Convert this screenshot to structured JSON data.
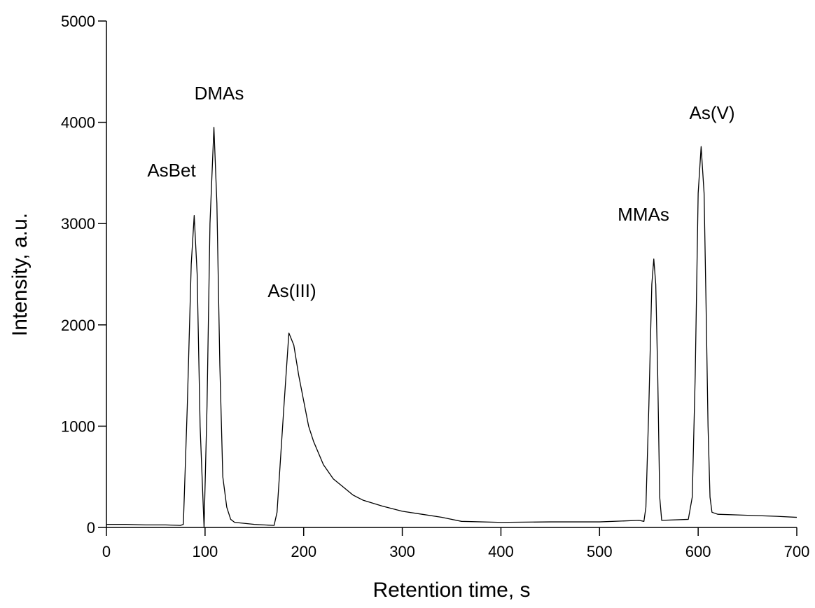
{
  "chart_data": {
    "type": "line",
    "xlabel": "Retention time, s",
    "ylabel": "Intensity, a.u.",
    "xlim": [
      0,
      700
    ],
    "xticks": [
      0,
      100,
      200,
      300,
      400,
      500,
      600,
      700
    ],
    "ylim": [
      0,
      5000
    ],
    "yticks": [
      0,
      1000,
      2000,
      3000,
      4000,
      5000
    ],
    "grid": false,
    "annotations": [
      "AsBet",
      "DMAs",
      "As(III)",
      "MMAs",
      "As(V)"
    ],
    "series": [
      {
        "color": "#000000",
        "x": [
          0,
          20,
          40,
          60,
          75,
          78,
          82,
          86,
          89,
          92,
          95,
          99,
          102,
          105,
          109,
          112,
          115,
          118,
          122,
          126,
          130,
          150,
          170,
          173,
          176,
          180,
          185,
          190,
          195,
          200,
          205,
          210,
          220,
          230,
          240,
          250,
          260,
          280,
          300,
          320,
          340,
          360,
          400,
          450,
          500,
          540,
          545,
          547,
          550,
          553,
          555,
          557,
          559,
          561,
          563,
          590,
          594,
          597,
          600,
          603,
          606,
          608,
          610,
          612,
          614,
          620,
          650,
          680,
          700
        ],
        "values": [
          30,
          30,
          25,
          25,
          20,
          30,
          1200,
          2600,
          3080,
          2500,
          1000,
          0,
          1200,
          3000,
          3950,
          3200,
          1600,
          500,
          200,
          80,
          50,
          30,
          20,
          150,
          600,
          1200,
          1920,
          1800,
          1500,
          1250,
          1000,
          850,
          620,
          480,
          400,
          320,
          270,
          210,
          160,
          130,
          100,
          60,
          50,
          55,
          55,
          70,
          60,
          200,
          1200,
          2400,
          2650,
          2400,
          1500,
          300,
          70,
          80,
          300,
          1500,
          3300,
          3760,
          3300,
          2200,
          1000,
          300,
          150,
          130,
          120,
          110,
          100
        ]
      }
    ]
  }
}
